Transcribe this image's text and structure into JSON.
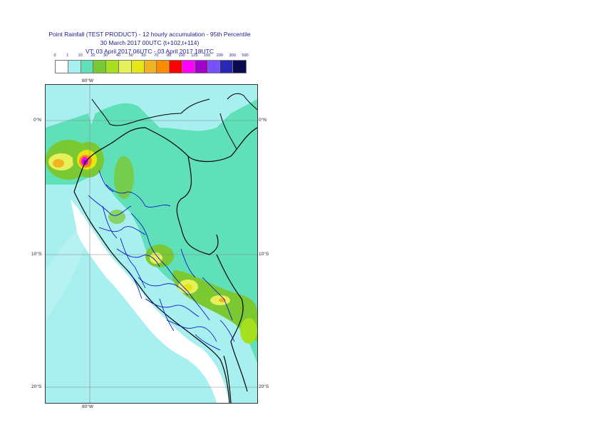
{
  "title": {
    "line1": "Point Rainfall (TEST PRODUCT) - 12 hourly accumulation - 95th Percentile",
    "line2": "30 March 2017 00UTC (t+102,t+114)",
    "line3": "VT: 03 April 2017 06UTC - 03 April 2017 18UTC"
  },
  "legend": {
    "ticks": [
      "0",
      "1",
      "10",
      "20",
      "30",
      "40",
      "50",
      "60",
      "70",
      "80",
      "100",
      "125",
      "150",
      "200",
      "300",
      "500"
    ],
    "colors": [
      "#ffffff",
      "#a8efef",
      "#5fe0b8",
      "#7ac832",
      "#a6e01e",
      "#e6f05a",
      "#e6e614",
      "#f0b41e",
      "#ff8c00",
      "#ff0000",
      "#ff00ff",
      "#a000c8",
      "#7850ff",
      "#2828b4",
      "#0a0a50"
    ]
  },
  "axes": {
    "lon_top": "80°W",
    "lon_bottom": "80°W",
    "lat_0_left": "0°N",
    "lat_0_right": "0°N",
    "lat_10_left": "10°S",
    "lat_10_right": "10°S",
    "lat_20_left": "20°S",
    "lat_20_right": "20°S"
  },
  "colors": {
    "ocean": "#a8efef",
    "land_main": "#5fe0b8",
    "coast_dry": "#ffffff",
    "country_border": "#000000",
    "region_border": "#0000cc"
  }
}
